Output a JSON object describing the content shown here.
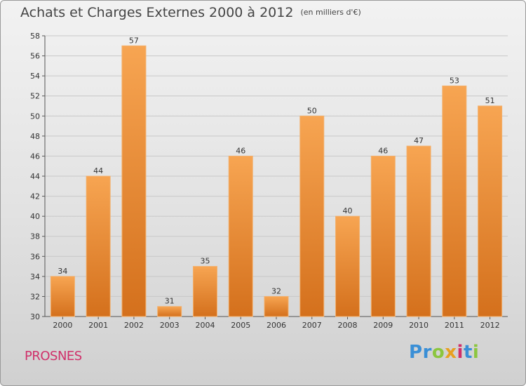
{
  "header": {
    "title": "Achats et Charges Externes 2000 à 2012",
    "subtitle": "(en milliers d'€)"
  },
  "footer": {
    "commune": "PROSNES",
    "logo": {
      "text": "Proxiti",
      "letters": [
        {
          "ch": "P",
          "color": "#3a8fd6"
        },
        {
          "ch": "r",
          "color": "#3a8fd6"
        },
        {
          "ch": "o",
          "color": "#8cc63f"
        },
        {
          "ch": "x",
          "color": "#e8a020"
        },
        {
          "ch": "i",
          "color": "#d0306a"
        },
        {
          "ch": "t",
          "color": "#3a8fd6"
        },
        {
          "ch": "i",
          "color": "#8cc63f"
        }
      ]
    }
  },
  "chart_data": {
    "type": "bar",
    "title": "Achats et Charges Externes 2000 à 2012",
    "subtitle": "(en milliers d'€)",
    "categories": [
      "2000",
      "2001",
      "2002",
      "2003",
      "2004",
      "2005",
      "2006",
      "2007",
      "2008",
      "2009",
      "2010",
      "2011",
      "2012"
    ],
    "values": [
      34,
      44,
      57,
      31,
      35,
      46,
      32,
      50,
      40,
      46,
      47,
      53,
      51
    ],
    "ylim": [
      30,
      58
    ],
    "yticks": [
      30,
      32,
      34,
      36,
      38,
      40,
      42,
      44,
      46,
      48,
      50,
      52,
      54,
      56,
      58
    ],
    "grid": true,
    "bar_color": "#f0922e",
    "data_labels": true
  }
}
